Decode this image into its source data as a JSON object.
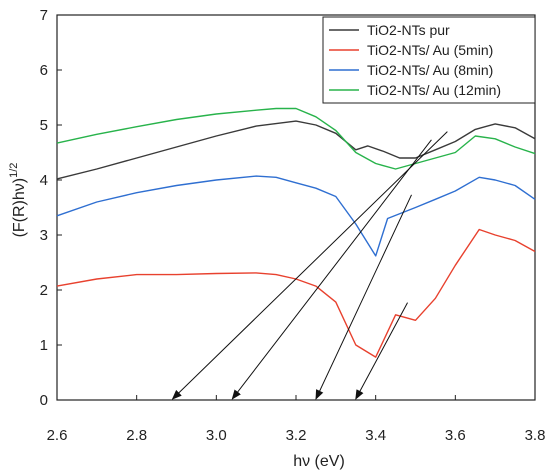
{
  "chart_data": {
    "type": "line",
    "xlabel": "hν (eV)",
    "ylabel": "(F(R)hν)",
    "ylabel_superscript": "1/2",
    "xlim": [
      2.6,
      3.8
    ],
    "ylim": [
      0,
      7
    ],
    "x_ticks": [
      "2.6",
      "2.8",
      "3.0",
      "3.2",
      "3.4",
      "3.6",
      "3.8"
    ],
    "y_ticks": [
      "0",
      "1",
      "2",
      "3",
      "4",
      "5",
      "6",
      "7"
    ],
    "grid": false,
    "legend_position": "top-right",
    "series": [
      {
        "name": "TiO2-NTs pur",
        "color": "#3a3a3a",
        "points": [
          [
            2.6,
            4.02
          ],
          [
            2.7,
            4.2
          ],
          [
            2.8,
            4.4
          ],
          [
            2.9,
            4.6
          ],
          [
            3.0,
            4.8
          ],
          [
            3.1,
            4.98
          ],
          [
            3.2,
            5.07
          ],
          [
            3.25,
            5.0
          ],
          [
            3.3,
            4.85
          ],
          [
            3.35,
            4.55
          ],
          [
            3.38,
            4.62
          ],
          [
            3.42,
            4.52
          ],
          [
            3.46,
            4.4
          ],
          [
            3.5,
            4.4
          ],
          [
            3.55,
            4.55
          ],
          [
            3.6,
            4.7
          ],
          [
            3.65,
            4.92
          ],
          [
            3.7,
            5.02
          ],
          [
            3.75,
            4.95
          ],
          [
            3.8,
            4.75
          ]
        ]
      },
      {
        "name": "TiO2-NTs/ Au (5min)",
        "color": "#e8412e",
        "points": [
          [
            2.6,
            2.07
          ],
          [
            2.7,
            2.2
          ],
          [
            2.8,
            2.28
          ],
          [
            2.9,
            2.28
          ],
          [
            3.0,
            2.3
          ],
          [
            3.1,
            2.31
          ],
          [
            3.15,
            2.28
          ],
          [
            3.2,
            2.2
          ],
          [
            3.25,
            2.07
          ],
          [
            3.3,
            1.78
          ],
          [
            3.35,
            1.0
          ],
          [
            3.4,
            0.78
          ],
          [
            3.45,
            1.55
          ],
          [
            3.5,
            1.45
          ],
          [
            3.55,
            1.85
          ],
          [
            3.6,
            2.45
          ],
          [
            3.66,
            3.1
          ],
          [
            3.7,
            3.0
          ],
          [
            3.75,
            2.9
          ],
          [
            3.8,
            2.7
          ]
        ]
      },
      {
        "name": "TiO2-NTs/ Au (8min)",
        "color": "#2f6fd1",
        "points": [
          [
            2.6,
            3.35
          ],
          [
            2.7,
            3.6
          ],
          [
            2.8,
            3.77
          ],
          [
            2.9,
            3.9
          ],
          [
            3.0,
            4.0
          ],
          [
            3.1,
            4.07
          ],
          [
            3.15,
            4.05
          ],
          [
            3.2,
            3.95
          ],
          [
            3.25,
            3.85
          ],
          [
            3.3,
            3.7
          ],
          [
            3.35,
            3.2
          ],
          [
            3.4,
            2.62
          ],
          [
            3.43,
            3.3
          ],
          [
            3.5,
            3.5
          ],
          [
            3.55,
            3.65
          ],
          [
            3.6,
            3.8
          ],
          [
            3.66,
            4.05
          ],
          [
            3.7,
            4.0
          ],
          [
            3.75,
            3.9
          ],
          [
            3.8,
            3.65
          ]
        ]
      },
      {
        "name": "TiO2-NTs/ Au (12min)",
        "color": "#28b34b",
        "points": [
          [
            2.6,
            4.67
          ],
          [
            2.7,
            4.83
          ],
          [
            2.8,
            4.97
          ],
          [
            2.9,
            5.1
          ],
          [
            3.0,
            5.2
          ],
          [
            3.1,
            5.27
          ],
          [
            3.15,
            5.3
          ],
          [
            3.2,
            5.3
          ],
          [
            3.25,
            5.15
          ],
          [
            3.3,
            4.9
          ],
          [
            3.35,
            4.5
          ],
          [
            3.4,
            4.3
          ],
          [
            3.45,
            4.2
          ],
          [
            3.5,
            4.3
          ],
          [
            3.55,
            4.4
          ],
          [
            3.6,
            4.5
          ],
          [
            3.65,
            4.8
          ],
          [
            3.7,
            4.75
          ],
          [
            3.75,
            4.6
          ],
          [
            3.8,
            4.48
          ]
        ]
      }
    ],
    "annotations": [
      {
        "type": "arrow",
        "color": "#111111",
        "from": [
          3.58,
          4.88
        ],
        "to": [
          2.89,
          0.0
        ]
      },
      {
        "type": "arrow",
        "color": "#111111",
        "from": [
          3.54,
          4.73
        ],
        "to": [
          3.04,
          0.0
        ]
      },
      {
        "type": "arrow",
        "color": "#111111",
        "from": [
          3.49,
          3.73
        ],
        "to": [
          3.25,
          0.0
        ]
      },
      {
        "type": "arrow",
        "color": "#111111",
        "from": [
          3.48,
          1.77
        ],
        "to": [
          3.35,
          0.0
        ]
      }
    ]
  }
}
